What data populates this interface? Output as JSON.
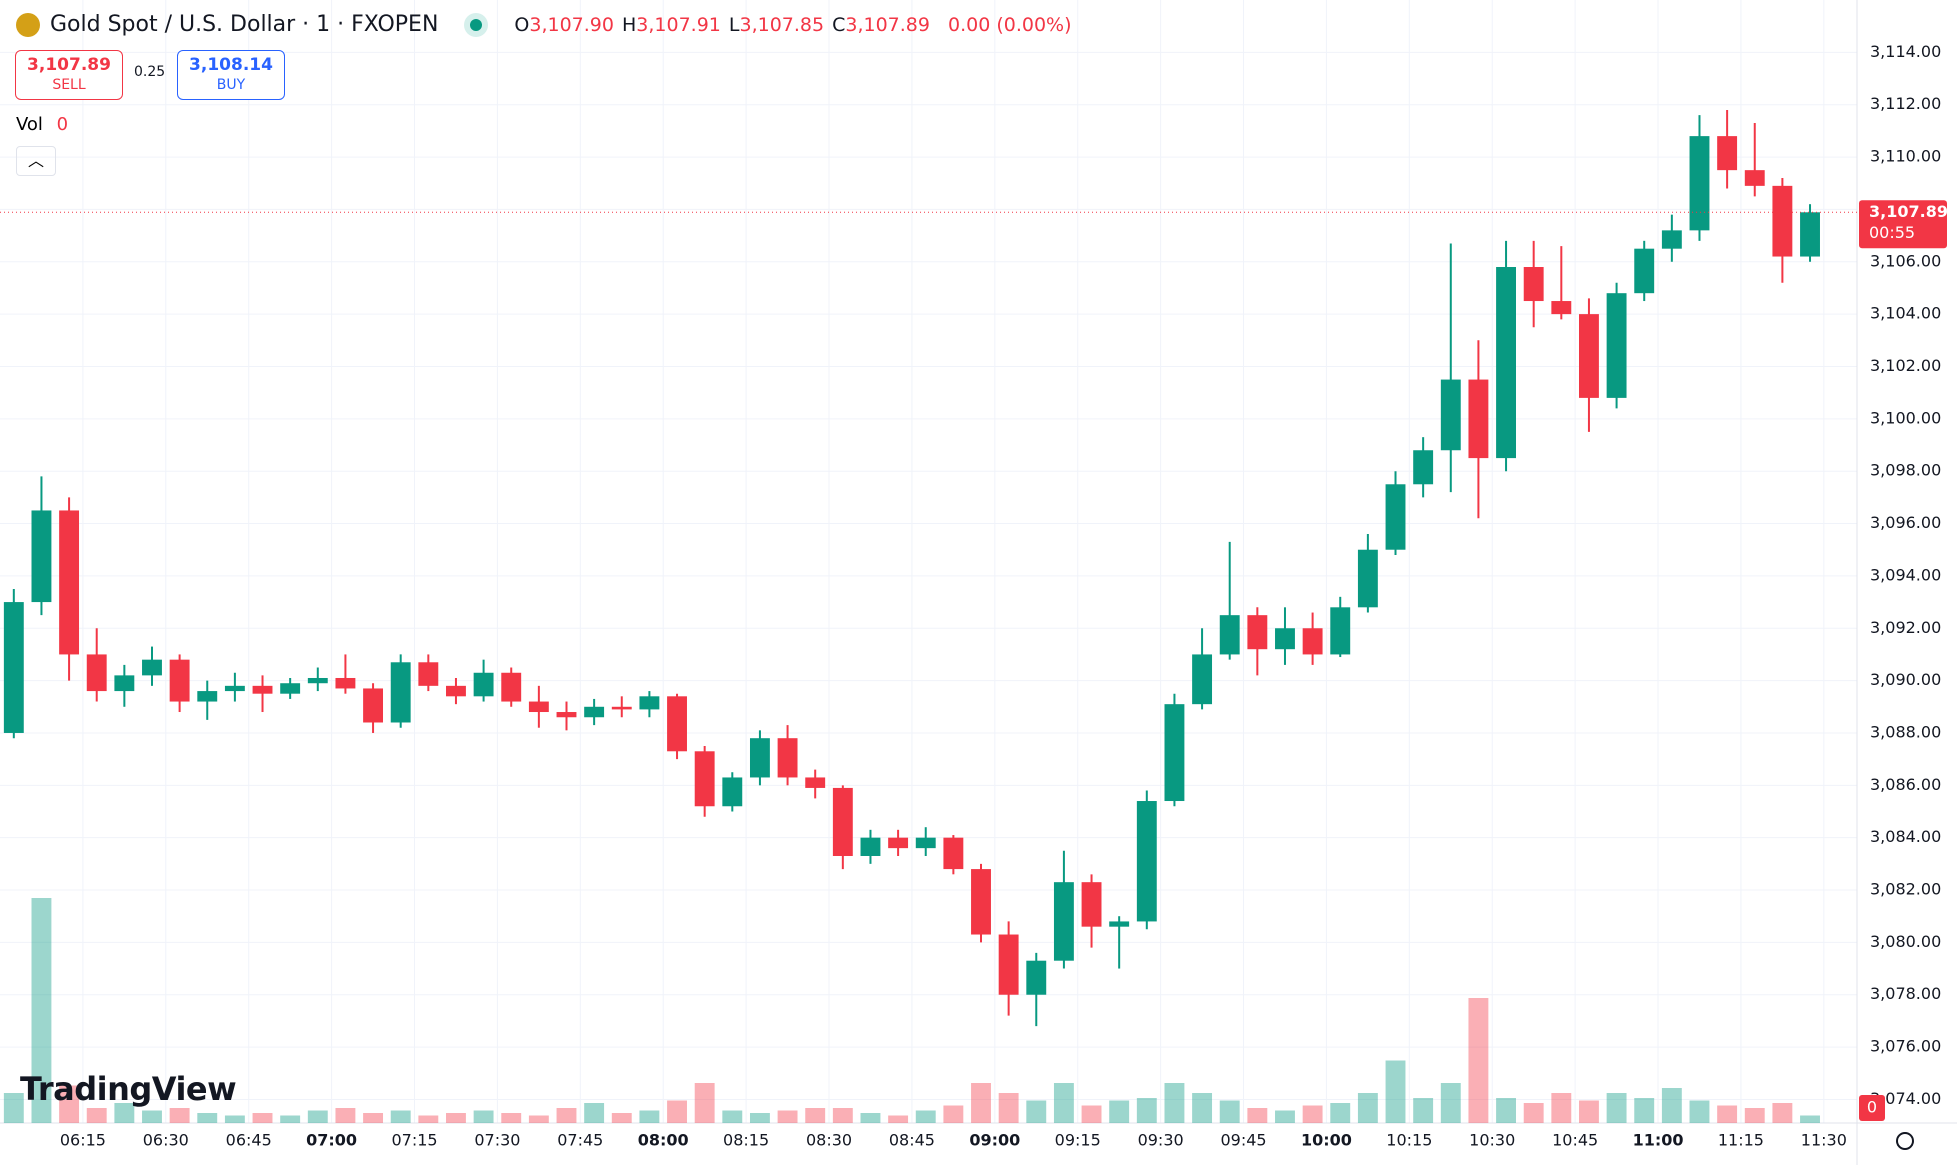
{
  "header": {
    "symbol": "Gold Spot / U.S. Dollar · 1 · FXOPEN",
    "ohlc": [
      {
        "key": "O",
        "value": "3,107.90"
      },
      {
        "key": "H",
        "value": "3,107.91"
      },
      {
        "key": "L",
        "value": "3,107.85"
      },
      {
        "key": "C",
        "value": "3,107.89"
      }
    ],
    "change": "0.00 (0.00%)"
  },
  "trade": {
    "sell_price": "3,107.89",
    "sell_label": "SELL",
    "spread": "0.25",
    "buy_price": "3,108.14",
    "buy_label": "BUY"
  },
  "volume_legend": {
    "label": "Vol",
    "value": "0"
  },
  "brand": "TradingView",
  "chart_data": {
    "type": "candlestick",
    "up_color": "#089981",
    "down_color": "#f23645",
    "grid": true,
    "x": [
      "06:00",
      "06:05",
      "06:10",
      "06:15",
      "06:20",
      "06:25",
      "06:30",
      "06:35",
      "06:40",
      "06:45",
      "06:50",
      "06:55",
      "07:00",
      "07:05",
      "07:10",
      "07:15",
      "07:20",
      "07:25",
      "07:30",
      "07:35",
      "07:40",
      "07:45",
      "07:50",
      "07:55",
      "08:00",
      "08:05",
      "08:10",
      "08:15",
      "08:20",
      "08:25",
      "08:30",
      "08:35",
      "08:40",
      "08:45",
      "08:50",
      "08:55",
      "09:00",
      "09:05",
      "09:10",
      "09:15",
      "09:20",
      "09:25",
      "09:30",
      "09:35",
      "09:40",
      "09:45",
      "09:50",
      "09:55",
      "10:00",
      "10:05",
      "10:10",
      "10:15",
      "10:20",
      "10:25",
      "10:30",
      "10:35",
      "10:40",
      "10:45",
      "10:50",
      "10:55",
      "11:00",
      "11:05",
      "11:10",
      "11:15",
      "11:20",
      "11:25"
    ],
    "open": [
      3088,
      3093,
      3096.5,
      3091,
      3089.6,
      3090.2,
      3090.8,
      3089.2,
      3089.6,
      3089.8,
      3089.5,
      3089.9,
      3090.1,
      3089.7,
      3088.4,
      3090.7,
      3089.8,
      3089.4,
      3090.3,
      3089.2,
      3088.8,
      3088.6,
      3089,
      3088.9,
      3089.4,
      3087.3,
      3085.2,
      3086.3,
      3087.8,
      3086.3,
      3085.9,
      3083.3,
      3084,
      3083.6,
      3084,
      3082.8,
      3080.3,
      3078,
      3079.3,
      3082.3,
      3080.6,
      3080.8,
      3085.4,
      3089.1,
      3091,
      3092.5,
      3091.2,
      3092,
      3091,
      3092.8,
      3095,
      3097.5,
      3098.8,
      3101.5,
      3098.5,
      3105.8,
      3104.5,
      3104,
      3100.8,
      3104.8,
      3106.5,
      3107.2,
      3110.8,
      3109.5,
      3108.9,
      3106.2
    ],
    "high": [
      3093.5,
      3097.8,
      3097,
      3092,
      3090.6,
      3091.3,
      3091,
      3090,
      3090.3,
      3090.2,
      3090.1,
      3090.5,
      3091,
      3089.9,
      3091,
      3091,
      3090.1,
      3090.8,
      3090.5,
      3089.8,
      3089.2,
      3089.3,
      3089.4,
      3089.6,
      3089.5,
      3087.5,
      3086.5,
      3088.1,
      3088.3,
      3086.6,
      3086,
      3084.3,
      3084.3,
      3084.4,
      3084.1,
      3083,
      3080.8,
      3079.6,
      3083.5,
      3082.6,
      3081,
      3085.8,
      3089.5,
      3092,
      3095.3,
      3092.8,
      3092.8,
      3092.6,
      3093.2,
      3095.6,
      3098,
      3099.3,
      3106.7,
      3103,
      3106.8,
      3106.8,
      3106.6,
      3104.6,
      3105.2,
      3106.8,
      3107.8,
      3111.6,
      3111.8,
      3111.3,
      3109.2,
      3108.2
    ],
    "low": [
      3087.8,
      3092.5,
      3090,
      3089.2,
      3089,
      3089.8,
      3088.8,
      3088.5,
      3089.2,
      3088.8,
      3089.3,
      3089.6,
      3089.5,
      3088,
      3088.2,
      3089.6,
      3089.1,
      3089.2,
      3089,
      3088.2,
      3088.1,
      3088.3,
      3088.6,
      3088.6,
      3087,
      3084.8,
      3085,
      3086,
      3086,
      3085.5,
      3082.8,
      3083,
      3083.3,
      3083.3,
      3082.6,
      3080,
      3077.2,
      3076.8,
      3079,
      3079.8,
      3079,
      3080.5,
      3085.2,
      3088.9,
      3090.8,
      3090.2,
      3090.6,
      3090.6,
      3090.9,
      3092.6,
      3094.8,
      3097,
      3097.2,
      3096.2,
      3098,
      3103.5,
      3103.8,
      3099.5,
      3100.4,
      3104.5,
      3106,
      3106.8,
      3108.8,
      3108.5,
      3105.2,
      3106
    ],
    "close": [
      3093,
      3096.5,
      3091,
      3089.6,
      3090.2,
      3090.8,
      3089.2,
      3089.6,
      3089.8,
      3089.5,
      3089.9,
      3090.1,
      3089.7,
      3088.4,
      3090.7,
      3089.8,
      3089.4,
      3090.3,
      3089.2,
      3088.8,
      3088.6,
      3089,
      3088.9,
      3089.4,
      3087.3,
      3085.2,
      3086.3,
      3087.8,
      3086.3,
      3085.9,
      3083.3,
      3084,
      3083.6,
      3084,
      3082.8,
      3080.3,
      3078,
      3079.3,
      3082.3,
      3080.6,
      3080.8,
      3085.4,
      3089.1,
      3091,
      3092.5,
      3091.2,
      3092,
      3091,
      3092.8,
      3095,
      3097.5,
      3098.8,
      3101.5,
      3098.5,
      3105.8,
      3104.5,
      3104,
      3100.8,
      3104.8,
      3106.5,
      3107.2,
      3110.8,
      3109.5,
      3108.9,
      3106.2,
      3107.89
    ],
    "volume": [
      12,
      90,
      15,
      6,
      8,
      5,
      6,
      4,
      3,
      4,
      3,
      5,
      6,
      4,
      5,
      3,
      4,
      5,
      4,
      3,
      6,
      8,
      4,
      5,
      9,
      16,
      5,
      4,
      5,
      6,
      6,
      4,
      3,
      5,
      7,
      16,
      12,
      9,
      16,
      7,
      9,
      10,
      16,
      12,
      9,
      6,
      5,
      7,
      8,
      12,
      25,
      10,
      16,
      50,
      10,
      8,
      12,
      9,
      12,
      10,
      14,
      9,
      7,
      6,
      8,
      3
    ],
    "vlim": [
      0,
      100
    ],
    "xlim": [
      "06:00",
      "11:36"
    ],
    "xticks": [
      "06:15",
      "06:30",
      "06:45",
      "07:00",
      "07:15",
      "07:30",
      "07:45",
      "08:00",
      "08:15",
      "08:30",
      "08:45",
      "09:00",
      "09:15",
      "09:30",
      "09:45",
      "10:00",
      "10:15",
      "10:30",
      "10:45",
      "11:00",
      "11:15",
      "11:30"
    ],
    "ylim": [
      3073.1,
      3116
    ],
    "yticks": [
      {
        "value": 3074,
        "label": "3,074.00"
      },
      {
        "value": 3076,
        "label": "3,076.00"
      },
      {
        "value": 3078,
        "label": "3,078.00"
      },
      {
        "value": 3080,
        "label": "3,080.00"
      },
      {
        "value": 3082,
        "label": "3,082.00"
      },
      {
        "value": 3084,
        "label": "3,084.00"
      },
      {
        "value": 3086,
        "label": "3,086.00"
      },
      {
        "value": 3088,
        "label": "3,088.00"
      },
      {
        "value": 3090,
        "label": "3,090.00"
      },
      {
        "value": 3092,
        "label": "3,092.00"
      },
      {
        "value": 3094,
        "label": "3,094.00"
      },
      {
        "value": 3096,
        "label": "3,096.00"
      },
      {
        "value": 3098,
        "label": "3,098.00"
      },
      {
        "value": 3100,
        "label": "3,100.00"
      },
      {
        "value": 3102,
        "label": "3,102.00"
      },
      {
        "value": 3104,
        "label": "3,104.00"
      },
      {
        "value": 3106,
        "label": "3,106.00"
      },
      {
        "value": 3108,
        "label": "3,108.00"
      },
      {
        "value": 3110,
        "label": "3,110.00"
      },
      {
        "value": 3112,
        "label": "3,112.00"
      },
      {
        "value": 3114,
        "label": "3,114.00"
      }
    ],
    "last_price": {
      "value": 3107.89,
      "label": "3,107.89",
      "countdown": "00:55"
    },
    "volume_label": "0"
  }
}
